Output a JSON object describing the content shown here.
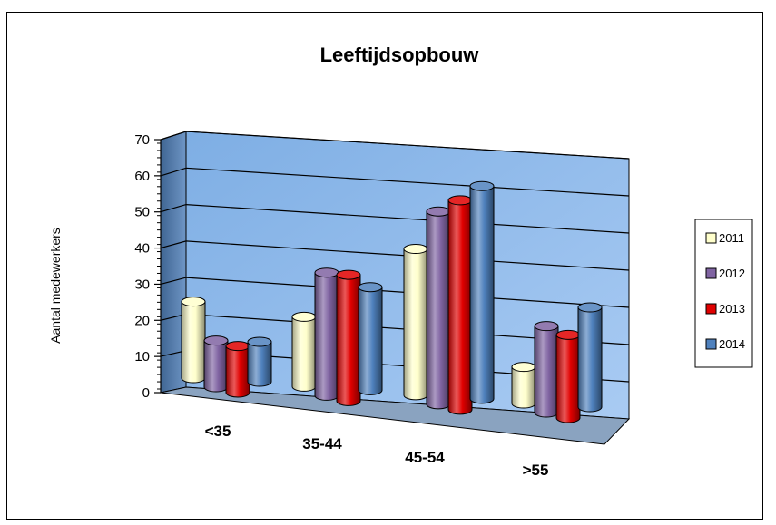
{
  "chart_data": {
    "type": "bar",
    "title": "Leeftijdsopbouw",
    "xlabel": "",
    "ylabel": "Aantal medewerkers",
    "ylim": [
      0,
      70
    ],
    "yticks": [
      0,
      10,
      20,
      30,
      40,
      50,
      60,
      70
    ],
    "grid": true,
    "legend_position": "right",
    "categories": [
      "<35",
      "35-44",
      "45-54",
      ">55"
    ],
    "series": [
      {
        "name": "2011",
        "color": "#FFFFCC",
        "values": [
          23,
          21,
          44,
          11
        ]
      },
      {
        "name": "2012",
        "color": "#8064A2",
        "values": [
          14,
          37,
          58,
          26
        ]
      },
      {
        "name": "2013",
        "color": "#E00000",
        "values": [
          14,
          38,
          63,
          25
        ]
      },
      {
        "name": "2014",
        "color": "#4F81BD",
        "values": [
          12,
          31,
          64,
          30
        ]
      }
    ]
  }
}
